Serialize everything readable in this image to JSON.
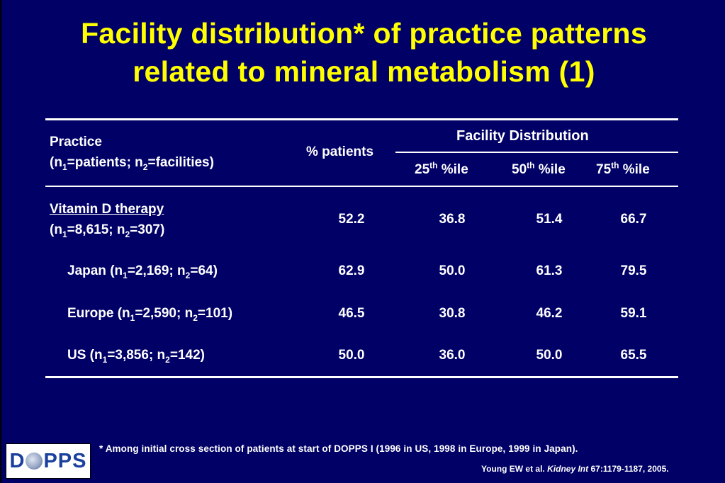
{
  "title": {
    "line1": "Facility distribution* of practice patterns",
    "line2": "related to mineral metabolism (1)"
  },
  "table": {
    "header": {
      "practice": "Practice",
      "practice_sub_open": "(n",
      "practice_sub_1": "1",
      "practice_sub_mid": "=patients; n",
      "practice_sub_2": "2",
      "practice_sub_close": "=facilities)",
      "pct_patients": "% patients",
      "facility_distribution": "Facility Distribution",
      "p25_num": "25",
      "p50_num": "50",
      "p75_num": "75",
      "th": "th",
      "pct_ile": " %ile"
    },
    "rows": [
      {
        "label": "Vitamin D therapy",
        "n_open": " (n",
        "n1": "=8,615; n",
        "n2": "=307)",
        "pct": "52.2",
        "p25": "36.8",
        "p50": "51.4",
        "p75": "66.7"
      },
      {
        "label_prefix": "Japan (n",
        "n1": "=2,169; n",
        "n2": "=64)",
        "pct": "62.9",
        "p25": "50.0",
        "p50": "61.3",
        "p75": "79.5"
      },
      {
        "label_prefix": "Europe (n",
        "n1": "=2,590; n",
        "n2": "=101)",
        "pct": "46.5",
        "p25": "30.8",
        "p50": "46.2",
        "p75": "59.1"
      },
      {
        "label_prefix": "US (n",
        "n1": "=3,856; n",
        "n2": "=142)",
        "pct": "50.0",
        "p25": "36.0",
        "p50": "50.0",
        "p75": "65.5"
      }
    ],
    "sub1": "1",
    "sub2": "2"
  },
  "footnote": "* Among initial cross section of patients at start of DOPPS I (1996 in US, 1998 in Europe, 1999 in Japan).",
  "citation": {
    "authors": "Young EW et al. ",
    "journal": "Kidney Int",
    "ref": " 67:1179-1187, 2005."
  },
  "logo": {
    "left": "D",
    "right": "PPS"
  },
  "colors": {
    "background": "#000066",
    "title": "#ffff00",
    "text": "#ffffff",
    "logo_text": "#1a3f9c"
  }
}
